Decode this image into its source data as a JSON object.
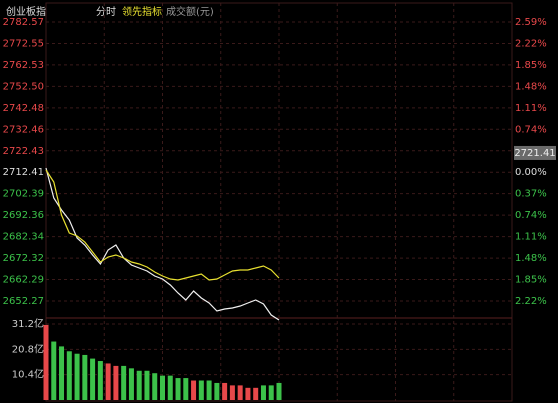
{
  "chart_data": [
    {
      "type": "line",
      "title": "创业板指",
      "xlim": [
        0,
        240
      ],
      "xticks": [
        30,
        60,
        90,
        120,
        150,
        180,
        210
      ],
      "ylim": [
        2643.4,
        2782.57
      ],
      "yticks": [
        {
          "value": 2782.57,
          "label": "2782.57"
        },
        {
          "value": 2772.55,
          "label": "2772.55"
        },
        {
          "value": 2762.53,
          "label": "2762.53"
        },
        {
          "value": 2752.5,
          "label": "2752.50"
        },
        {
          "value": 2742.48,
          "label": "2742.48"
        },
        {
          "value": 2732.46,
          "label": "2732.46"
        },
        {
          "value": 2722.43,
          "label": "2722.43"
        },
        {
          "value": 2712.41,
          "label": "2712.41"
        },
        {
          "value": 2702.39,
          "label": "2702.39"
        },
        {
          "value": 2692.36,
          "label": "2692.36"
        },
        {
          "value": 2682.34,
          "label": "2682.34"
        },
        {
          "value": 2672.32,
          "label": "2672.32"
        },
        {
          "value": 2662.29,
          "label": "2662.29"
        },
        {
          "value": 2652.27,
          "label": "2652.27"
        }
      ],
      "pct_labels": [
        "2.59%",
        "2.22%",
        "1.85%",
        "1.48%",
        "1.11%",
        "0.74%",
        "0.37%",
        "0.00%",
        "0.37%",
        "0.74%",
        "1.11%",
        "1.48%",
        "1.85%",
        "2.22%"
      ],
      "ytick_colors": [
        "#e8484a",
        "#e8484a",
        "#e8484a",
        "#e8484a",
        "#e8484a",
        "#e8484a",
        "#e8484a",
        "#dddddd",
        "#3cc24a",
        "#3cc24a",
        "#3cc24a",
        "#3cc24a",
        "#3cc24a",
        "#3cc24a"
      ],
      "last_label": {
        "value": 2721.41,
        "label": "2721.41"
      },
      "x": [
        0,
        4,
        8,
        12,
        16,
        20,
        24,
        28,
        32,
        36,
        40,
        44,
        48,
        52,
        56,
        60,
        64,
        68,
        72,
        76,
        80,
        84,
        88,
        92,
        96,
        100,
        104,
        108,
        112,
        116,
        120
      ],
      "series": [
        {
          "name": "分时",
          "color": "#f0f0f0",
          "values": [
            2714.39,
            2700.38,
            2694.77,
            2690.1,
            2681.7,
            2678.43,
            2673.76,
            2669.56,
            2676.09,
            2678.43,
            2672.36,
            2669.09,
            2667.69,
            2666.29,
            2663.95,
            2662.55,
            2659.75,
            2656.01,
            2652.74,
            2656.95,
            2653.68,
            2651.34,
            2647.61,
            2648.54,
            2649.01,
            2649.94,
            2651.34,
            2652.74,
            2650.88,
            2645.74,
            2643.4
          ]
        },
        {
          "name": "领先指标",
          "color": "#e8e030",
          "values": [
            2713.45,
            2707.85,
            2692.44,
            2684.03,
            2682.63,
            2679.83,
            2675.16,
            2670.49,
            2672.82,
            2673.76,
            2672.36,
            2670.49,
            2669.56,
            2668.15,
            2665.82,
            2663.95,
            2662.55,
            2662.08,
            2663.02,
            2663.95,
            2664.89,
            2662.08,
            2662.55,
            2664.42,
            2666.29,
            2666.75,
            2666.75,
            2667.69,
            2668.62,
            2666.75,
            2663.02
          ]
        }
      ]
    },
    {
      "type": "bar",
      "title": "成交额(元)",
      "ylim": [
        0,
        31.2
      ],
      "yticks": [
        {
          "value": 31.2,
          "label": "31.2亿"
        },
        {
          "value": 20.8,
          "label": "20.8亿"
        },
        {
          "value": 10.4,
          "label": "10.4亿"
        }
      ],
      "values": [
        30.8,
        24,
        22,
        20,
        19,
        18.5,
        17,
        16,
        15,
        14,
        14,
        13,
        12,
        12,
        11,
        10,
        10,
        9,
        9,
        8,
        8,
        8,
        7,
        7,
        6,
        6,
        5,
        5,
        6,
        6,
        7
      ],
      "colors": [
        "#e8484a",
        "#3cc24a",
        "#3cc24a",
        "#3cc24a",
        "#3cc24a",
        "#3cc24a",
        "#3cc24a",
        "#3cc24a",
        "#e8484a",
        "#e8484a",
        "#3cc24a",
        "#3cc24a",
        "#3cc24a",
        "#3cc24a",
        "#3cc24a",
        "#3cc24a",
        "#3cc24a",
        "#3cc24a",
        "#3cc24a",
        "#e8484a",
        "#3cc24a",
        "#3cc24a",
        "#3cc24a",
        "#e8484a",
        "#e8484a",
        "#e8484a",
        "#e8484a",
        "#e8484a",
        "#3cc24a",
        "#3cc24a",
        "#3cc24a"
      ]
    }
  ]
}
